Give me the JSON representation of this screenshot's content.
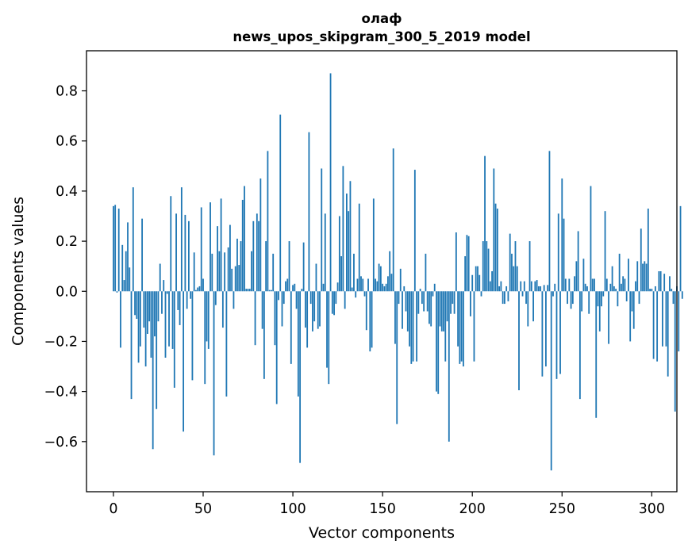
{
  "chart_data": {
    "type": "bar",
    "title": "олаф",
    "subtitle": "news_upos_skipgram_300_5_2019 model",
    "xlabel": "Vector components",
    "ylabel": "Components values",
    "xlim": [
      -15,
      314
    ],
    "ylim": [
      -0.8,
      0.96
    ],
    "xticks": [
      0,
      50,
      100,
      150,
      200,
      250,
      300
    ],
    "xtick_labels": [
      "0",
      "50",
      "100",
      "150",
      "200",
      "250",
      "300"
    ],
    "yticks": [
      -0.6,
      -0.4,
      -0.2,
      0.0,
      0.2,
      0.4,
      0.6,
      0.8
    ],
    "ytick_labels": [
      "−0.6",
      "−0.4",
      "−0.2",
      "0.0",
      "0.2",
      "0.4",
      "0.6",
      "0.8"
    ],
    "grid": false,
    "bar_color": "#1f77b4",
    "series": [
      {
        "values": [
          0.34,
          0.345,
          -0.005,
          0.33,
          -0.225,
          0.185,
          0.045,
          0.16,
          0.275,
          0.095,
          -0.43,
          0.415,
          -0.095,
          -0.11,
          -0.285,
          -0.22,
          0.29,
          -0.145,
          -0.3,
          -0.17,
          -0.12,
          -0.265,
          -0.63,
          -0.18,
          -0.47,
          -0.12,
          0.11,
          -0.09,
          0.045,
          -0.265,
          -0.01,
          -0.22,
          0.38,
          -0.23,
          -0.385,
          0.31,
          -0.075,
          -0.135,
          0.415,
          -0.56,
          0.305,
          -0.07,
          0.28,
          -0.03,
          -0.355,
          0.155,
          0.005,
          0.015,
          0.02,
          0.335,
          0.05,
          -0.37,
          -0.2,
          -0.23,
          0.355,
          0.15,
          -0.655,
          -0.055,
          0.26,
          0.16,
          0.37,
          -0.145,
          0.155,
          -0.42,
          0.175,
          0.265,
          0.09,
          -0.07,
          0.1,
          0.21,
          0.105,
          0.2,
          0.365,
          0.42,
          0.01,
          0.01,
          0.01,
          0.16,
          0.28,
          -0.215,
          0.31,
          0.28,
          0.45,
          -0.15,
          -0.35,
          0.2,
          0.56,
          0.005,
          0.005,
          0.15,
          -0.215,
          -0.45,
          -0.035,
          0.705,
          -0.14,
          -0.05,
          0.04,
          0.05,
          0.2,
          -0.29,
          0.025,
          0.03,
          -0.07,
          -0.42,
          -0.685,
          0.01,
          0.195,
          -0.145,
          -0.225,
          0.635,
          -0.05,
          -0.16,
          -0.12,
          0.11,
          -0.15,
          -0.14,
          0.49,
          0.03,
          0.31,
          -0.305,
          -0.37,
          0.87,
          -0.09,
          -0.095,
          -0.05,
          0.035,
          0.3,
          0.14,
          0.5,
          -0.07,
          0.39,
          0.32,
          0.44,
          0.015,
          0.15,
          -0.025,
          0.05,
          0.35,
          0.06,
          0.05,
          -0.02,
          -0.155,
          0.05,
          -0.24,
          -0.225,
          0.37,
          0.05,
          0.04,
          0.11,
          0.1,
          0.03,
          0.02,
          0.03,
          0.06,
          0.16,
          0.07,
          0.57,
          -0.21,
          -0.53,
          -0.05,
          0.09,
          -0.15,
          0.02,
          -0.08,
          -0.16,
          -0.22,
          -0.29,
          -0.28,
          0.485,
          -0.28,
          -0.09,
          0.01,
          -0.05,
          -0.08,
          0.15,
          -0.08,
          -0.13,
          -0.14,
          -0.02,
          0.03,
          -0.4,
          -0.41,
          -0.14,
          -0.16,
          -0.16,
          -0.28,
          -0.12,
          -0.6,
          -0.09,
          -0.05,
          -0.09,
          0.235,
          -0.22,
          -0.29,
          -0.28,
          -0.3,
          0.14,
          0.225,
          0.22,
          -0.1,
          0.065,
          -0.28,
          0.1,
          0.1,
          0.065,
          -0.02,
          0.2,
          0.54,
          0.2,
          0.17,
          0.04,
          0.08,
          0.49,
          0.35,
          0.33,
          0.02,
          0.04,
          -0.05,
          -0.05,
          0.02,
          -0.04,
          0.23,
          0.15,
          0.1,
          0.2,
          0.1,
          -0.395,
          0.04,
          -0.02,
          0.04,
          -0.05,
          -0.14,
          0.2,
          0.04,
          -0.12,
          0.04,
          0.045,
          0.02,
          0.02,
          -0.34,
          0.025,
          -0.3,
          0.025,
          0.56,
          -0.715,
          -0.02,
          0.03,
          -0.35,
          0.31,
          -0.33,
          0.45,
          0.29,
          0.05,
          -0.05,
          0.05,
          -0.07,
          -0.05,
          0.06,
          0.12,
          0.24,
          -0.43,
          -0.08,
          0.13,
          0.03,
          0.02,
          -0.09,
          0.42,
          0.05,
          0.05,
          -0.505,
          -0.06,
          -0.16,
          -0.06,
          -0.02,
          0.32,
          0.05,
          -0.21,
          0.03,
          0.1,
          0.02,
          0.01,
          -0.06,
          0.15,
          0.03,
          0.06,
          0.05,
          -0.04,
          0.13,
          -0.2,
          -0.08,
          -0.15,
          0.04,
          0.12,
          -0.05,
          0.25,
          0.11,
          0.12,
          0.11,
          0.33,
          0.01,
          0.01,
          -0.27,
          0.02,
          -0.28,
          0.08,
          0.08,
          -0.22,
          0.07,
          -0.22,
          -0.34,
          0.06,
          0.01,
          -0.05,
          -0.48,
          0.02,
          -0.24,
          0.34,
          -0.03
        ]
      }
    ]
  }
}
